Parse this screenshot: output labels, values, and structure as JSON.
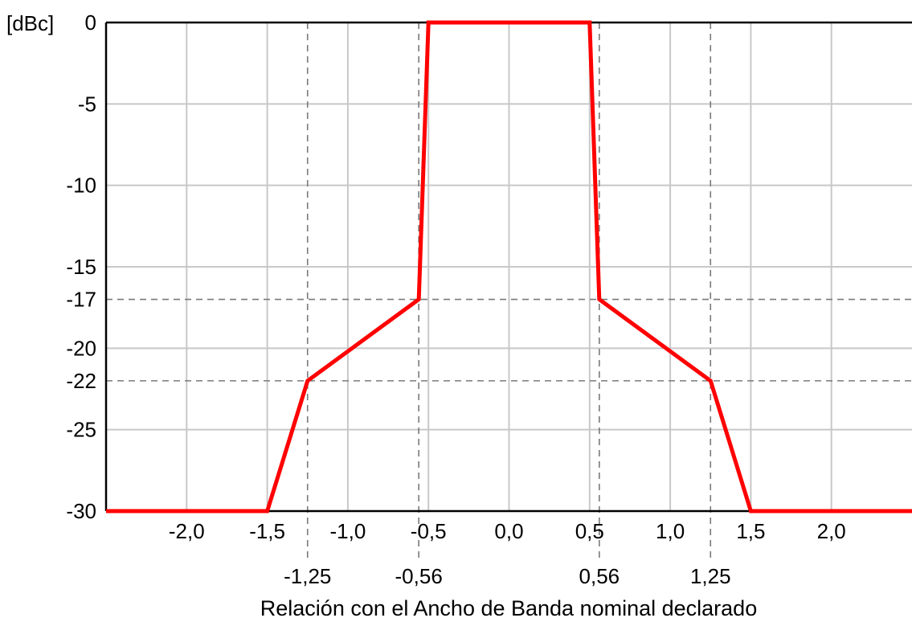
{
  "chart_data": {
    "type": "line",
    "xlabel": "Relación con el Ancho de Banda nominal declarado",
    "ylabel": "[dBc]",
    "xlim": [
      -2.5,
      2.5
    ],
    "ylim": [
      -30,
      0
    ],
    "grid": true,
    "x_major_ticks": [
      {
        "value": -2.0,
        "label": "-2,0"
      },
      {
        "value": -1.5,
        "label": "-1,5"
      },
      {
        "value": -1.0,
        "label": "-1,0"
      },
      {
        "value": -0.5,
        "label": "-0,5"
      },
      {
        "value": 0.0,
        "label": "0,0"
      },
      {
        "value": 0.5,
        "label": "0,5"
      },
      {
        "value": 1.0,
        "label": "1,0"
      },
      {
        "value": 1.5,
        "label": "1,5"
      },
      {
        "value": 2.0,
        "label": "2,0"
      }
    ],
    "x_marked_ticks": [
      {
        "value": -1.25,
        "label": "-1,25"
      },
      {
        "value": -0.56,
        "label": "-0,56"
      },
      {
        "value": 0.56,
        "label": "0,56"
      },
      {
        "value": 1.25,
        "label": "1,25"
      }
    ],
    "y_ticks": [
      {
        "value": 0,
        "label": "0"
      },
      {
        "value": -5,
        "label": "-5"
      },
      {
        "value": -10,
        "label": "-10"
      },
      {
        "value": -15,
        "label": "-15"
      },
      {
        "value": -17,
        "label": "-17"
      },
      {
        "value": -20,
        "label": "-20"
      },
      {
        "value": -22,
        "label": "-22"
      },
      {
        "value": -25,
        "label": "-25"
      },
      {
        "value": -30,
        "label": "-30"
      }
    ],
    "y_major_grid": [
      0,
      -5,
      -10,
      -15,
      -20,
      -25,
      -30
    ],
    "y_dashed_grid": [
      -17,
      -22
    ],
    "series": [
      {
        "color": "#ff0000",
        "x": [
          -2.5,
          -1.5,
          -1.25,
          -0.56,
          -0.5,
          0.5,
          0.56,
          1.25,
          1.5,
          2.5
        ],
        "y": [
          -30,
          -30,
          -22,
          -17,
          0,
          0,
          -17,
          -22,
          -30,
          -30
        ]
      }
    ]
  }
}
